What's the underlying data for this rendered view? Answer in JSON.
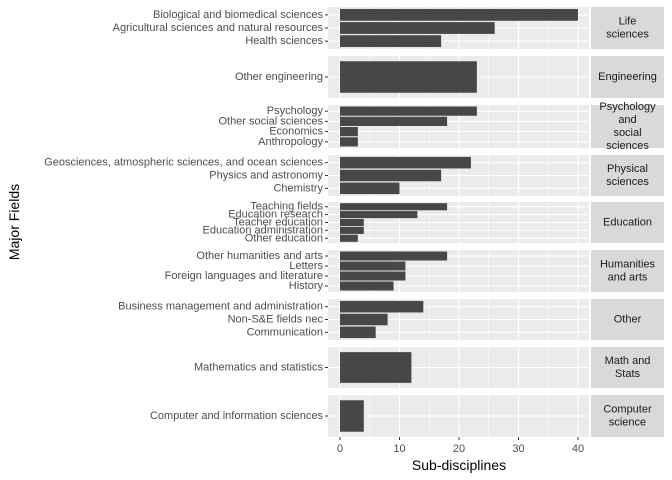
{
  "chart_data": {
    "type": "bar",
    "orientation": "horizontal",
    "faceted": true,
    "facet_strip_position": "right",
    "xlabel": "Sub-disciplines",
    "ylabel": "Major Fields",
    "xlim": [
      0,
      42
    ],
    "xticks": [
      "0",
      "10",
      "20",
      "30",
      "40"
    ],
    "grid": true,
    "legend": "none",
    "colors": {
      "bar": "#474747",
      "panel_background": "#ebebeb",
      "grid": "#ffffff",
      "strip_background": "#d9d9d9",
      "strip_text": "#1a1a1a",
      "tick_text": "#4d4d4d"
    },
    "facets": [
      {
        "name": "Life\nsciences",
        "categories": [
          "Biological and biomedical sciences",
          "Agricultural sciences and natural resources",
          "Health sciences"
        ],
        "values": [
          40,
          26,
          17
        ]
      },
      {
        "name": "Engineering",
        "categories": [
          "Other engineering"
        ],
        "values": [
          23
        ]
      },
      {
        "name": "Psychology\nand\nsocial\nsciences",
        "categories": [
          "Psychology",
          "Other social sciences",
          "Economics",
          "Anthropology"
        ],
        "values": [
          23,
          18,
          3,
          3
        ]
      },
      {
        "name": "Physical\nsciences",
        "categories": [
          "Geosciences, atmospheric sciences, and ocean sciences",
          "Physics and astronomy",
          "Chemistry"
        ],
        "values": [
          22,
          17,
          10
        ]
      },
      {
        "name": "Education",
        "categories": [
          "Teaching fields",
          "Education research",
          "Teacher education",
          "Education administration",
          "Other education"
        ],
        "values": [
          18,
          13,
          4,
          4,
          3
        ]
      },
      {
        "name": "Humanities\nand arts",
        "categories": [
          "Other humanities and arts",
          "Letters",
          "Foreign languages and literature",
          "History"
        ],
        "values": [
          18,
          11,
          11,
          9
        ]
      },
      {
        "name": "Other",
        "categories": [
          "Business management and administration",
          "Non-S&E fields nec",
          "Communication"
        ],
        "values": [
          14,
          8,
          6
        ]
      },
      {
        "name": "Math and\nStats",
        "categories": [
          "Mathematics and statistics"
        ],
        "values": [
          12
        ]
      },
      {
        "name": "Computer\nscience",
        "categories": [
          "Computer and information sciences"
        ],
        "values": [
          4
        ]
      }
    ]
  }
}
